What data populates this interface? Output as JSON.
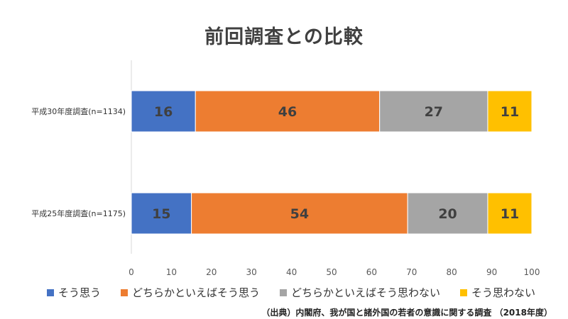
{
  "chart_data": {
    "type": "bar",
    "orientation": "horizontal",
    "stacked": true,
    "title": "前回調査との比較",
    "categories": [
      "平成30年度調査(n=1134)",
      "平成25年度調査(n=1175)"
    ],
    "series": [
      {
        "name": "そう思う",
        "values": [
          16,
          15
        ],
        "color": "#4472C4"
      },
      {
        "name": "どちらかといえばそう思う",
        "values": [
          46,
          54
        ],
        "color": "#ED7D31"
      },
      {
        "name": "どちらかといえばそう思わない",
        "values": [
          27,
          20
        ],
        "color": "#A5A5A5"
      },
      {
        "name": "そう思わない",
        "values": [
          11,
          11
        ],
        "color": "#FFC000"
      }
    ],
    "xlim": [
      0,
      100
    ],
    "xticks": [
      0,
      10,
      20,
      30,
      40,
      50,
      60,
      70,
      80,
      90,
      100
    ],
    "grid": false,
    "legend_position": "bottom"
  },
  "source_note": "（出典）内閣府、我が国と諸外国の若者の意識に関する調査 （2018年度）"
}
